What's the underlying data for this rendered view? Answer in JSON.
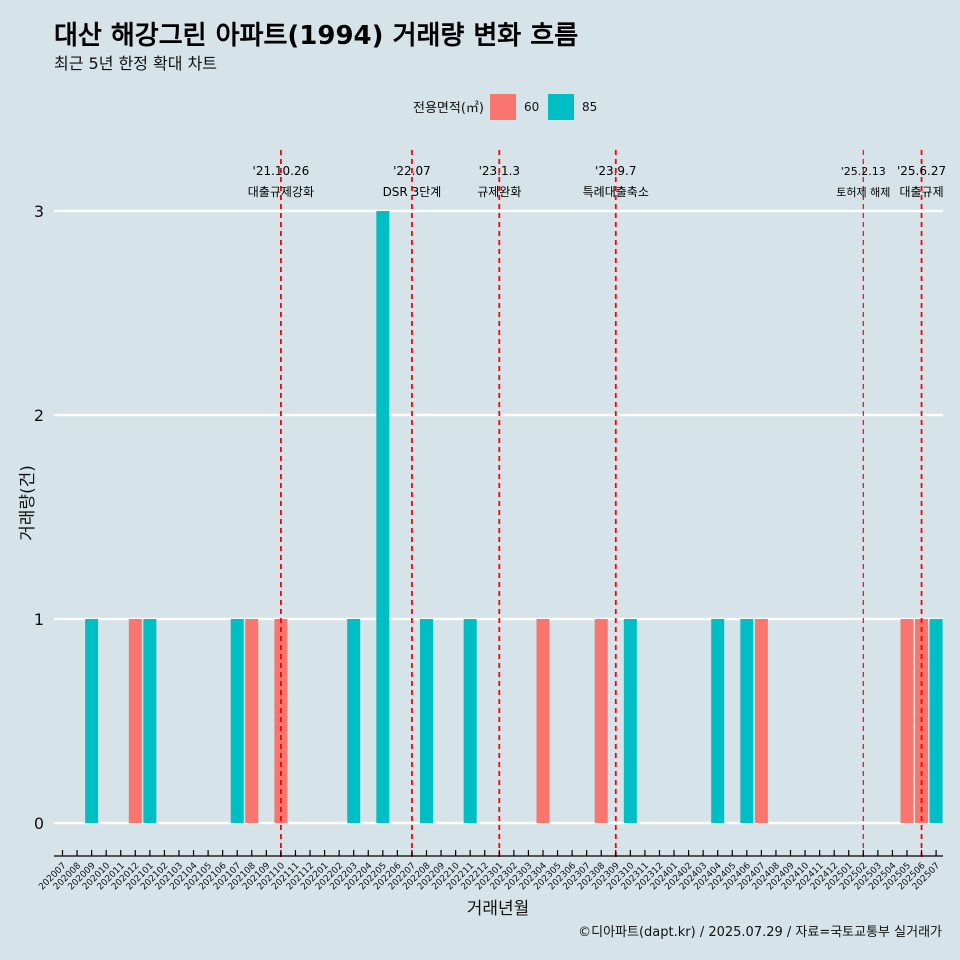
{
  "title": "대산 해강그린 아파트(1994) 거래량 변화 흐름",
  "subtitle": "최근 5년 한정 확대 차트",
  "caption": "©디아파트(dapt.kr) / 2025.07.29 / 자료=국토교통부 실거래가",
  "colors": {
    "background": "#d6e4ea",
    "area60": "#f8766d",
    "area85": "#00bfc4",
    "policy_line": "#ff0000",
    "grid": "#ffffff"
  },
  "chart_data": {
    "type": "bar",
    "xlabel": "거래년월",
    "ylabel": "거래량(건)",
    "ylim": [
      0,
      3
    ],
    "yticks": [
      0,
      1,
      2,
      3
    ],
    "grid": true,
    "legend": {
      "title": "전용면적(㎡)",
      "position": "top",
      "entries": [
        {
          "label": "60",
          "color": "#f8766d"
        },
        {
          "label": "85",
          "color": "#00bfc4"
        }
      ]
    },
    "categories": [
      "202007",
      "202008",
      "202009",
      "202010",
      "202011",
      "202012",
      "202101",
      "202102",
      "202103",
      "202104",
      "202105",
      "202106",
      "202107",
      "202108",
      "202109",
      "202110",
      "202111",
      "202112",
      "202201",
      "202202",
      "202203",
      "202204",
      "202205",
      "202206",
      "202207",
      "202208",
      "202209",
      "202210",
      "202211",
      "202212",
      "202301",
      "202302",
      "202303",
      "202304",
      "202305",
      "202306",
      "202307",
      "202308",
      "202309",
      "202310",
      "202311",
      "202312",
      "202401",
      "202402",
      "202403",
      "202404",
      "202405",
      "202406",
      "202407",
      "202408",
      "202409",
      "202410",
      "202411",
      "202412",
      "202501",
      "202502",
      "202503",
      "202504",
      "202505",
      "202506",
      "202507"
    ],
    "series": [
      {
        "name": "60",
        "color": "#f8766d",
        "points": [
          {
            "x": "202012",
            "y": 1
          },
          {
            "x": "202108",
            "y": 1
          },
          {
            "x": "202110",
            "y": 1
          },
          {
            "x": "202304",
            "y": 1
          },
          {
            "x": "202308",
            "y": 1
          },
          {
            "x": "202407",
            "y": 1
          },
          {
            "x": "202505",
            "y": 1
          },
          {
            "x": "202506",
            "y": 1
          }
        ]
      },
      {
        "name": "85",
        "color": "#00bfc4",
        "points": [
          {
            "x": "202009",
            "y": 1
          },
          {
            "x": "202101",
            "y": 1
          },
          {
            "x": "202107",
            "y": 1
          },
          {
            "x": "202203",
            "y": 1
          },
          {
            "x": "202205",
            "y": 3
          },
          {
            "x": "202208",
            "y": 1
          },
          {
            "x": "202211",
            "y": 1
          },
          {
            "x": "202310",
            "y": 1
          },
          {
            "x": "202404",
            "y": 1
          },
          {
            "x": "202406",
            "y": 1
          },
          {
            "x": "202507",
            "y": 1
          }
        ]
      }
    ],
    "annotations": [
      {
        "date": "'21.10.26",
        "label": "대출규제강화",
        "x": "202110"
      },
      {
        "date": "'22.07",
        "label": "DSR 3단계",
        "x": "202207"
      },
      {
        "date": "'23.1.3",
        "label": "규제완화",
        "x": "202301"
      },
      {
        "date": "'23.9.7",
        "label": "특례대출축소",
        "x": "202309"
      },
      {
        "date": "'25.2.13",
        "label": "토허제 해제",
        "x": "202502"
      },
      {
        "date": "'25.6.27",
        "label": "대출규제",
        "x": "202506"
      }
    ]
  }
}
